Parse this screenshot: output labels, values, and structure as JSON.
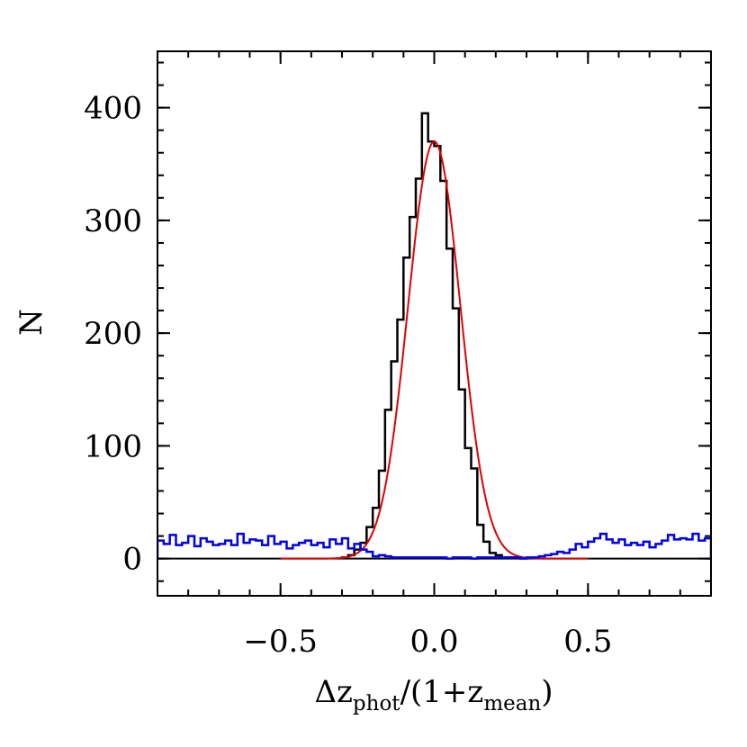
{
  "chart_data": {
    "type": "histogram",
    "xlabel": {
      "base": "Δz",
      "sub1": "phot",
      "mid": "/(1+z",
      "sub2": "mean",
      "end": ")"
    },
    "ylabel": "N",
    "xlim": [
      -0.9,
      0.9
    ],
    "ylim": [
      -33,
      450
    ],
    "xticks": [
      -0.5,
      0.0,
      0.5
    ],
    "xtick_labels": [
      "−0.5",
      "0.0",
      "0.5"
    ],
    "yticks": [
      0,
      100,
      200,
      300,
      400
    ],
    "ytick_labels": [
      "0",
      "100",
      "200",
      "300",
      "400"
    ],
    "x_minor_step": 0.1,
    "y_minor_step": 20,
    "zero_line": true,
    "grid": false,
    "legend": "none",
    "bin_edges": [
      -0.3,
      -0.28,
      -0.26,
      -0.24,
      -0.22,
      -0.2,
      -0.18,
      -0.16,
      -0.14,
      -0.12,
      -0.1,
      -0.08,
      -0.06,
      -0.04,
      -0.02,
      0.0,
      0.02,
      0.04,
      0.06,
      0.08,
      0.1,
      0.12,
      0.14,
      0.16,
      0.18,
      0.2,
      0.22,
      0.24,
      0.26
    ],
    "series": [
      {
        "type": "step",
        "color": "#000000",
        "values": [
          1,
          3,
          8,
          14,
          28,
          45,
          78,
          132,
          175,
          212,
          267,
          303,
          337,
          395,
          370,
          366,
          335,
          275,
          222,
          150,
          98,
          80,
          30,
          15,
          5,
          3,
          1,
          1
        ]
      },
      {
        "type": "gaussian_fit",
        "color": "#e00000",
        "amplitude": 370,
        "mean": 0.0,
        "sigma": 0.085,
        "xrange": [
          -0.5,
          0.5
        ]
      },
      {
        "type": "step",
        "color": "#0000ee",
        "x_start": -0.9,
        "bin_width": 0.02,
        "values": [
          16,
          13,
          21,
          12,
          14,
          20,
          11,
          18,
          15,
          12,
          13,
          16,
          12,
          22,
          14,
          17,
          16,
          12,
          20,
          13,
          15,
          9,
          12,
          14,
          16,
          12,
          14,
          10,
          17,
          13,
          18,
          9,
          13,
          8,
          6,
          2,
          3,
          2,
          1,
          1,
          1,
          1,
          1,
          1,
          1,
          1,
          1,
          0,
          1,
          1,
          1,
          0,
          1,
          1,
          1,
          1,
          1,
          1,
          1,
          0,
          1,
          1,
          2,
          3,
          4,
          6,
          5,
          8,
          13,
          10,
          15,
          18,
          22,
          17,
          14,
          17,
          12,
          14,
          12,
          15,
          10,
          13,
          16,
          21,
          17,
          18,
          17,
          22,
          16,
          18
        ]
      }
    ]
  }
}
